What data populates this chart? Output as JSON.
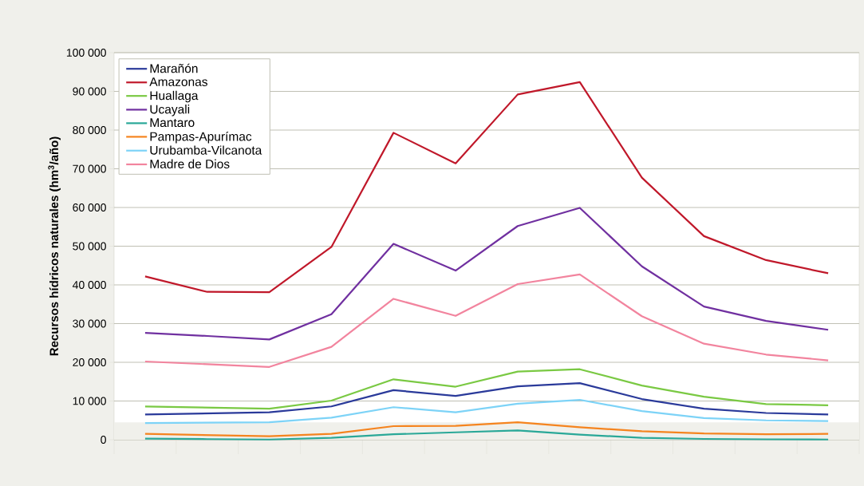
{
  "chart_data": {
    "type": "line",
    "ylabel": "Recursos hídricos naturales (hm$^{3}$/año)",
    "categories": [
      null,
      null,
      null,
      null,
      null,
      null,
      null,
      null,
      null,
      null,
      null,
      null
    ],
    "ylim": [
      0,
      100000
    ],
    "yticks": [
      {
        "value": 0,
        "label": "0"
      },
      {
        "value": 10000,
        "label": "10 000"
      },
      {
        "value": 20000,
        "label": "20 000"
      },
      {
        "value": 30000,
        "label": "30 000"
      },
      {
        "value": 40000,
        "label": "40 000"
      },
      {
        "value": 50000,
        "label": "50 000"
      },
      {
        "value": 60000,
        "label": "60 000"
      },
      {
        "value": 70000,
        "label": "70 000"
      },
      {
        "value": 80000,
        "label": "80 000"
      },
      {
        "value": 90000,
        "label": "90 000"
      },
      {
        "value": 100000,
        "label": "100 000"
      }
    ],
    "grid": "y",
    "legend": "top left",
    "marker": "none",
    "line_style": "solid",
    "bands": [
      {
        "axis": "y",
        "from": 0,
        "to": 4500,
        "color": "#f0f0eb"
      }
    ],
    "series": [
      {
        "name": "Marañón",
        "color": "#2a3a9a",
        "values": [
          6500,
          6800,
          7100,
          8600,
          12800,
          11300,
          13800,
          14600,
          10500,
          8000,
          6900,
          6500
        ]
      },
      {
        "name": "Amazonas",
        "color": "#c0182a",
        "values": [
          42200,
          38200,
          38100,
          49800,
          79300,
          71400,
          89200,
          92400,
          67700,
          52600,
          46400,
          43000
        ]
      },
      {
        "name": "Huallaga",
        "color": "#7ac943",
        "values": [
          8600,
          8300,
          8000,
          10100,
          15600,
          13700,
          17600,
          18200,
          14000,
          11100,
          9200,
          8900
        ]
      },
      {
        "name": "Ucayali",
        "color": "#7030a0",
        "values": [
          27600,
          26800,
          25900,
          32400,
          50600,
          43700,
          55200,
          59900,
          44800,
          34400,
          30700,
          28400
        ]
      },
      {
        "name": "Mantaro",
        "color": "#2aa898",
        "values": [
          300,
          150,
          50,
          500,
          1400,
          1900,
          2400,
          1300,
          500,
          200,
          100,
          50
        ]
      },
      {
        "name": "Pampas-Apurímac",
        "color": "#f5841f",
        "values": [
          1500,
          1200,
          900,
          1500,
          3500,
          3600,
          4500,
          3200,
          2200,
          1600,
          1400,
          1500
        ]
      },
      {
        "name": "Urubamba-Vilcanota",
        "color": "#7dd3f7",
        "values": [
          4300,
          4400,
          4500,
          5700,
          8400,
          7100,
          9300,
          10300,
          7400,
          5600,
          5000,
          4800
        ]
      },
      {
        "name": "Madre de Dios",
        "color": "#f2849e",
        "values": [
          20200,
          19500,
          18800,
          24000,
          36400,
          32000,
          40200,
          42700,
          31900,
          24800,
          22000,
          20500
        ]
      }
    ]
  }
}
